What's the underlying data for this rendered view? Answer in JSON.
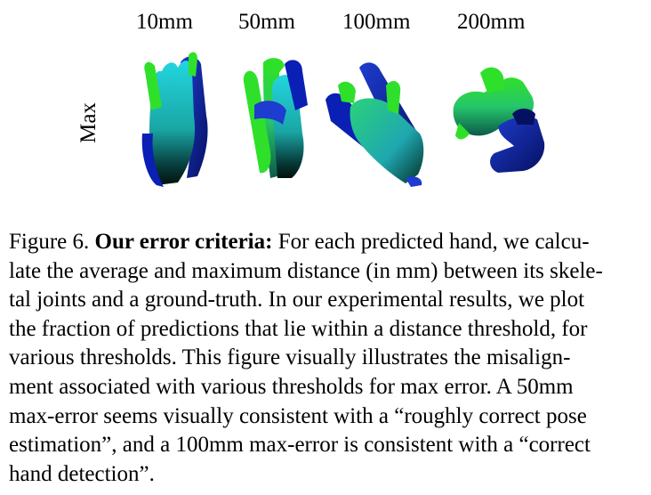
{
  "figure": {
    "column_labels": [
      "10mm",
      "50mm",
      "100mm",
      "200mm"
    ],
    "row_label": "Max",
    "palette": {
      "deep_blue": "#0a1fb4",
      "navy": "#061060",
      "cyan": "#26d6d8",
      "teal": "#1aa6a4",
      "green": "#2fe02a",
      "dark": "#02110c"
    },
    "hands": [
      {
        "name": "hand-10mm",
        "threshold": "10mm"
      },
      {
        "name": "hand-50mm",
        "threshold": "50mm"
      },
      {
        "name": "hand-100mm",
        "threshold": "100mm"
      },
      {
        "name": "hand-200mm",
        "threshold": "200mm"
      }
    ]
  },
  "caption": {
    "figure_number": "Figure 6.",
    "bold_title": "Our error criteria:",
    "line1_rest": "For each predicted hand, we calcu-",
    "lines": [
      "late the average and maximum distance (in mm) between its skele-",
      "tal joints and a ground-truth.  In our experimental results, we plot",
      "the fraction of predictions that lie within a distance threshold, for",
      "various thresholds.  This figure visually illustrates the misalign-",
      "ment associated with various thresholds for max error.  A 50mm",
      "max-error seems visually consistent with a “roughly correct pose",
      "estimation”, and a 100mm max-error is consistent with a “correct",
      "hand detection”."
    ]
  }
}
